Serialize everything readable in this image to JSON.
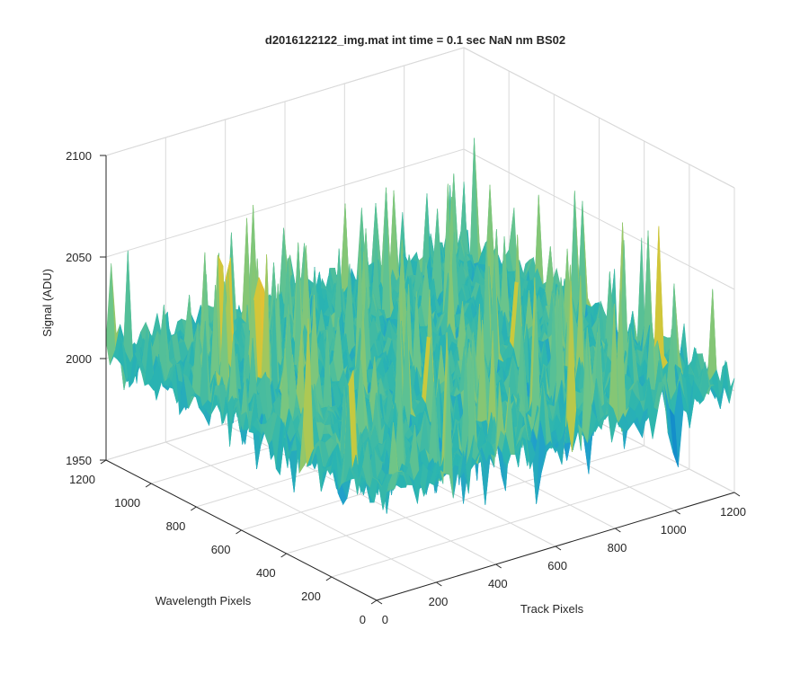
{
  "chart_data": {
    "type": "surface",
    "title": "d2016122122_img.mat int time = 0.1 sec  NaN nm BS02",
    "xlabel": "Track Pixels",
    "ylabel": "Wavelength Pixels",
    "zlabel": "Signal (ADU)",
    "xlim": [
      0,
      1200
    ],
    "ylim": [
      0,
      1200
    ],
    "zlim": [
      1950,
      2100
    ],
    "x_ticks": [
      "0",
      "200",
      "400",
      "600",
      "800",
      "1000",
      "1200"
    ],
    "y_ticks": [
      "0",
      "200",
      "400",
      "600",
      "800",
      "1000",
      "1200"
    ],
    "z_ticks": [
      "1950",
      "2000",
      "2050",
      "2100"
    ],
    "grid": true,
    "colormap": [
      "#0072bd",
      "#1e9bd0",
      "#2bb5b0",
      "#6cc58a",
      "#c9c93d",
      "#e6c032"
    ],
    "surface": {
      "baseline": 2000,
      "typical_min": 1975,
      "typical_max": 2030,
      "extreme_min": 1968,
      "extreme_max": 2080,
      "description_free_stats_note": ""
    }
  }
}
